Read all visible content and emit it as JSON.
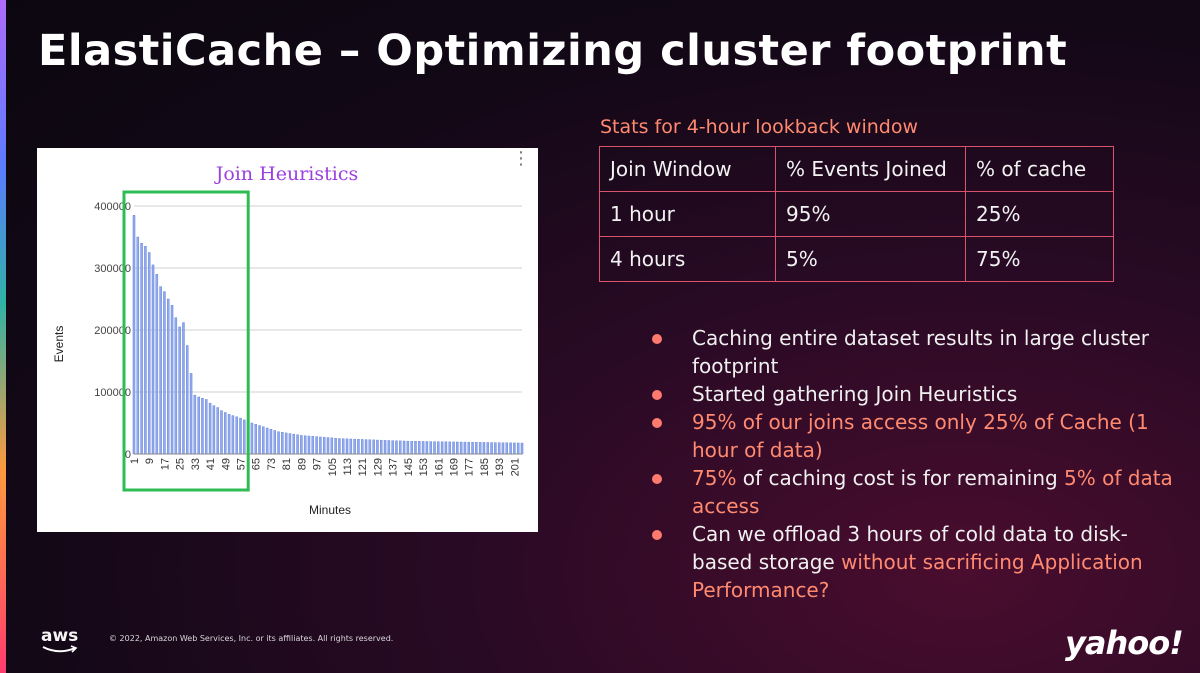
{
  "slide": {
    "title": "ElastiCache – Optimizing cluster footprint",
    "stats_caption": "Stats for 4-hour lookback window"
  },
  "table": {
    "headers": [
      "Join Window",
      "% Events Joined",
      "% of cache"
    ],
    "rows": [
      [
        "1 hour",
        "95%",
        "25%"
      ],
      [
        "4 hours",
        "5%",
        "75%"
      ]
    ]
  },
  "bullets": [
    {
      "parts": [
        {
          "text": "Caching entire dataset results in large cluster footprint",
          "hl": false
        }
      ]
    },
    {
      "parts": [
        {
          "text": "Started gathering Join Heuristics",
          "hl": false
        }
      ]
    },
    {
      "parts": [
        {
          "text": "95% of our joins access only 25% of Cache (1 hour of data)",
          "hl": true
        }
      ]
    },
    {
      "parts": [
        {
          "text": "75%",
          "hl": true
        },
        {
          "text": " of caching cost is for remaining ",
          "hl": false
        },
        {
          "text": "5% of data access",
          "hl": true
        }
      ]
    },
    {
      "parts": [
        {
          "text": "Can we offload 3 hours of cold data to disk-based storage ",
          "hl": false
        },
        {
          "text": "without sacrificing Application Performance?",
          "hl": true
        }
      ]
    }
  ],
  "footer": {
    "aws_logo_text": "aws",
    "copyright": "© 2022, Amazon Web Services, Inc. or its affiliates. All rights reserved.",
    "yahoo_logo_text": "yahoo!"
  },
  "colors": {
    "accent": "#ff8a70",
    "table_border": "#d9536a",
    "bar_fill": "#8fa8ee",
    "highlight_box": "#2ebd55",
    "chart_title": "#9b3fe0"
  },
  "chart_data": {
    "type": "bar",
    "title": "Join Heuristics",
    "xlabel": "Minutes",
    "ylabel": "Events",
    "ylim": [
      0,
      400000
    ],
    "yticks": [
      0,
      100000,
      200000,
      300000,
      400000
    ],
    "ytick_labels": [
      "0",
      "100000",
      "200000",
      "300000",
      "400000"
    ],
    "x_tick_labels": [
      "1",
      "9",
      "17",
      "25",
      "33",
      "41",
      "49",
      "57",
      "65",
      "73",
      "81",
      "89",
      "97",
      "105",
      "113",
      "121",
      "129",
      "137",
      "145",
      "153",
      "161",
      "169",
      "177",
      "185",
      "193",
      "201"
    ],
    "x": [
      1,
      3,
      5,
      7,
      9,
      11,
      13,
      15,
      17,
      19,
      21,
      23,
      25,
      27,
      29,
      31,
      33,
      35,
      37,
      39,
      41,
      43,
      45,
      47,
      49,
      51,
      53,
      55,
      57,
      59,
      61,
      63,
      65,
      67,
      69,
      71,
      73,
      75,
      77,
      79,
      81,
      83,
      85,
      87,
      89,
      91,
      93,
      95,
      97,
      99,
      101,
      103,
      105,
      107,
      109,
      111,
      113,
      115,
      117,
      119,
      121,
      123,
      125,
      127,
      129,
      131,
      133,
      135,
      137,
      139,
      141,
      143,
      145,
      147,
      149,
      151,
      153,
      155,
      157,
      159,
      161,
      163,
      165,
      167,
      169,
      171,
      173,
      175,
      177,
      179,
      181,
      183,
      185,
      187,
      189,
      191,
      193,
      195,
      197,
      199,
      201,
      203,
      205
    ],
    "values": [
      385000,
      350000,
      340000,
      335000,
      325000,
      305000,
      290000,
      270000,
      262000,
      250000,
      240000,
      220000,
      205000,
      212000,
      175000,
      130000,
      95000,
      92000,
      90000,
      88000,
      82000,
      78000,
      75000,
      70000,
      67000,
      64000,
      62000,
      60000,
      58000,
      55000,
      53000,
      50000,
      48000,
      46000,
      44000,
      42000,
      40000,
      38000,
      36000,
      35000,
      34000,
      33000,
      32000,
      31000,
      30000,
      29500,
      29000,
      28500,
      28000,
      27500,
      27000,
      26500,
      26000,
      25500,
      25000,
      24800,
      24500,
      24200,
      24000,
      23800,
      23500,
      23200,
      23000,
      22800,
      22500,
      22300,
      22000,
      21800,
      21600,
      21400,
      21200,
      21000,
      20800,
      20600,
      20500,
      20400,
      20300,
      20200,
      20100,
      20000,
      19900,
      19800,
      19700,
      19600,
      19500,
      19400,
      19300,
      19200,
      19100,
      19000,
      18900,
      18800,
      18700,
      18600,
      18500,
      18400,
      18300,
      18200,
      18100,
      18000,
      17900,
      17800,
      17700
    ],
    "highlight_range": [
      1,
      60
    ],
    "grid": true
  }
}
